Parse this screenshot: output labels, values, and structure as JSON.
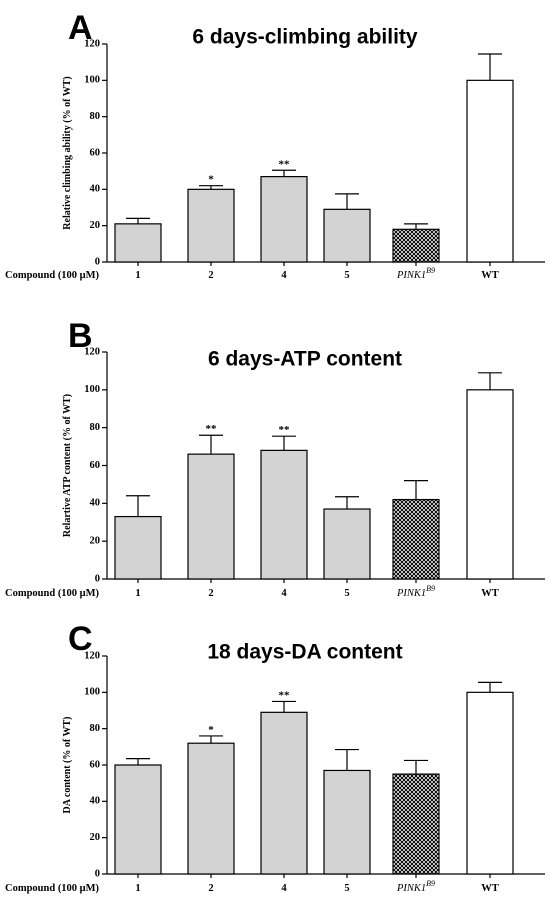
{
  "figure": {
    "x_axis_label": "Compound (100 μM)",
    "fill_colors": {
      "treated": "#d3d3d3",
      "pink1_pattern": "#000000",
      "wt": "#ffffff"
    }
  },
  "chart_data": [
    {
      "type": "bar",
      "panel": "A",
      "title": "6 days-climbing ability",
      "ylabel": "Relative climbing ability (% of WT)",
      "xlabel": "Compound (100 μM)",
      "ylim": [
        0,
        120
      ],
      "yticks": [
        0,
        20,
        40,
        60,
        80,
        100,
        120
      ],
      "categories": [
        "1",
        "2",
        "4",
        "5",
        "PINK1",
        "WT"
      ],
      "category_superscripts": [
        "",
        "",
        "",
        "",
        "B9",
        ""
      ],
      "values": [
        21,
        40,
        47,
        29,
        18,
        100
      ],
      "errors": [
        3,
        2,
        3.5,
        8.5,
        3,
        14.5
      ],
      "significance": [
        "",
        "*",
        "**",
        "",
        "",
        ""
      ],
      "fills": [
        "gray",
        "gray",
        "gray",
        "gray",
        "crosshatch",
        "white"
      ]
    },
    {
      "type": "bar",
      "panel": "B",
      "title": "6 days-ATP content",
      "ylabel": "Relartive ATP content (% of WT)",
      "xlabel": "Compound (100 μM)",
      "ylim": [
        0,
        120
      ],
      "yticks": [
        0,
        20,
        40,
        60,
        80,
        100,
        120
      ],
      "categories": [
        "1",
        "2",
        "4",
        "5",
        "PINK1",
        "WT"
      ],
      "category_superscripts": [
        "",
        "",
        "",
        "",
        "B9",
        ""
      ],
      "values": [
        33,
        66,
        68,
        37,
        42,
        100
      ],
      "errors": [
        11,
        10,
        7.5,
        6.5,
        10,
        9
      ],
      "significance": [
        "",
        "**",
        "**",
        "",
        "",
        ""
      ],
      "fills": [
        "gray",
        "gray",
        "gray",
        "gray",
        "crosshatch",
        "white"
      ]
    },
    {
      "type": "bar",
      "panel": "C",
      "title": "18 days-DA content",
      "ylabel": "DA content (% of WT)",
      "xlabel": "Compound (100 μM)",
      "ylim": [
        0,
        120
      ],
      "yticks": [
        0,
        20,
        40,
        60,
        80,
        100,
        120
      ],
      "categories": [
        "1",
        "2",
        "4",
        "5",
        "PINK1",
        "WT"
      ],
      "category_superscripts": [
        "",
        "",
        "",
        "",
        "B9",
        ""
      ],
      "values": [
        60,
        72,
        89,
        57,
        55,
        100
      ],
      "errors": [
        3.5,
        4,
        6,
        11.5,
        7.5,
        5.5
      ],
      "significance": [
        "",
        "*",
        "**",
        "",
        "",
        ""
      ],
      "fills": [
        "gray",
        "gray",
        "gray",
        "gray",
        "crosshatch",
        "white"
      ]
    }
  ]
}
